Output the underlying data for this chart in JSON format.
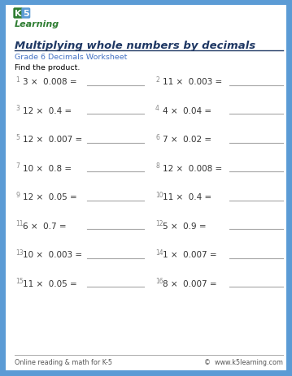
{
  "title": "Multiplying whole numbers by decimals",
  "subtitle": "Grade 6 Decimals Worksheet",
  "instruction": "Find the product.",
  "problems": [
    {
      "num": "1",
      "expr": "3 ×  0.008 ="
    },
    {
      "num": "2",
      "expr": "11 ×  0.003 ="
    },
    {
      "num": "3",
      "expr": "12 ×  0.4 ="
    },
    {
      "num": "4",
      "expr": "4 ×  0.04 ="
    },
    {
      "num": "5",
      "expr": "12 ×  0.007 ="
    },
    {
      "num": "6",
      "expr": "7 ×  0.02 ="
    },
    {
      "num": "7",
      "expr": "10 ×  0.8 ="
    },
    {
      "num": "8",
      "expr": "12 ×  0.008 ="
    },
    {
      "num": "9",
      "expr": "12 ×  0.05 ="
    },
    {
      "num": "10",
      "expr": "11 ×  0.4 ="
    },
    {
      "num": "11",
      "expr": "6 ×  0.7 ="
    },
    {
      "num": "12",
      "expr": "5 ×  0.9 ="
    },
    {
      "num": "13",
      "expr": "10 ×  0.003 ="
    },
    {
      "num": "14",
      "expr": "1 ×  0.007 ="
    },
    {
      "num": "15",
      "expr": "11 ×  0.05 ="
    },
    {
      "num": "16",
      "expr": "8 ×  0.007 ="
    }
  ],
  "footer_left": "Online reading & math for K-5",
  "footer_right": "©  www.k5learning.com",
  "border_color": "#5b9bd5",
  "title_color": "#1f3864",
  "subtitle_color": "#4472c4",
  "instruction_color": "#000000",
  "problem_color": "#333333",
  "line_color": "#aaaaaa",
  "title_underline_color": "#1f3864",
  "bg_color": "#ffffff",
  "outer_bg": "#5b9bd5",
  "logo_k5_color": "#2e7d32",
  "footer_color": "#555555",
  "num_color": "#888888"
}
